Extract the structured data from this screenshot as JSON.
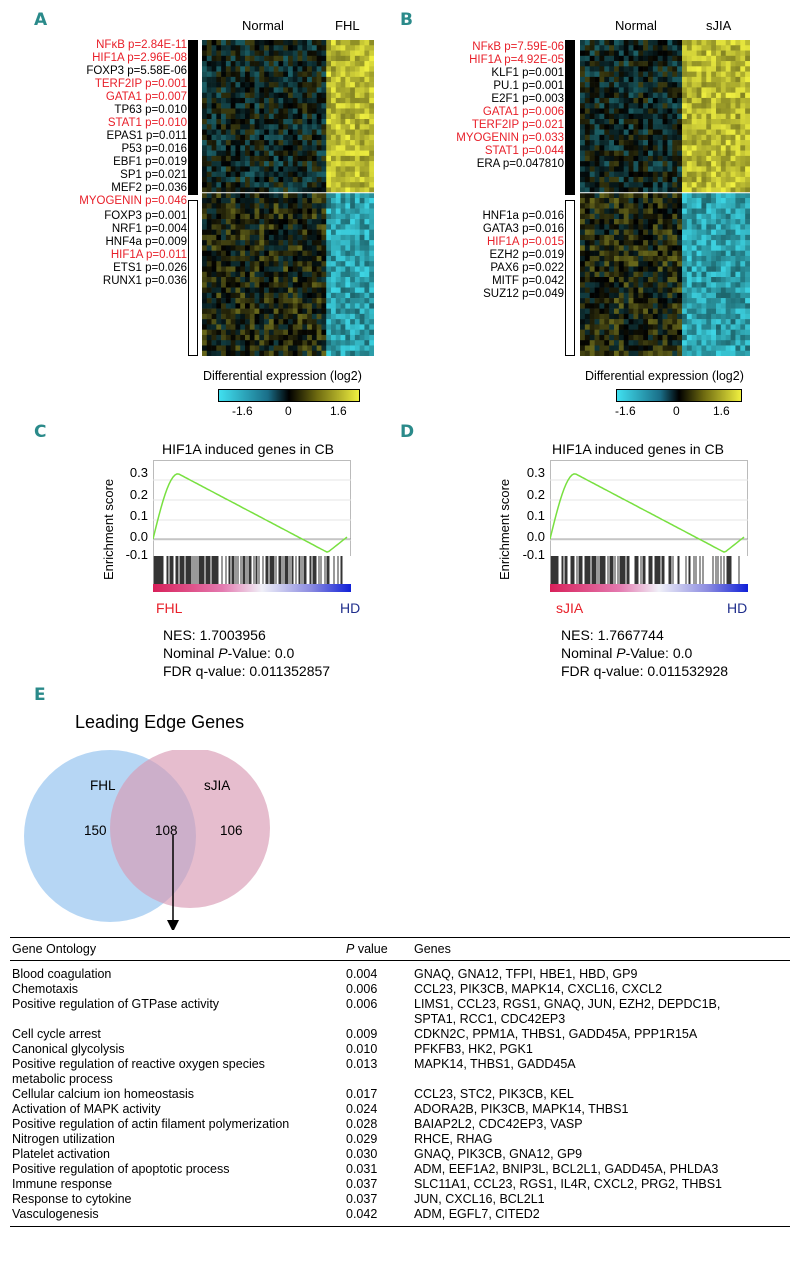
{
  "panels": {
    "A": "A",
    "B": "B",
    "C": "C",
    "D": "D",
    "E": "E"
  },
  "heatmapA": {
    "col_normal": "Normal",
    "col_case": "FHL",
    "up_tfs": [
      {
        "text": "NFκB p=2.84E-11",
        "red": true
      },
      {
        "text": "HIF1A p=2.96E-08",
        "red": true
      },
      {
        "text": "FOXP3 p=5.58E-06",
        "red": false
      },
      {
        "text": "TERF2IP p=0.001",
        "red": true
      },
      {
        "text": "GATA1 p=0.007",
        "red": true
      },
      {
        "text": "TP63 p=0.010",
        "red": false
      },
      {
        "text": "STAT1 p=0.010",
        "red": true
      },
      {
        "text": "EPAS1 p=0.011",
        "red": false
      },
      {
        "text": "P53 p=0.016",
        "red": false
      },
      {
        "text": "EBF1 p=0.019",
        "red": false
      },
      {
        "text": "SP1 p=0.021",
        "red": false
      },
      {
        "text": "MEF2 p=0.036",
        "red": false
      },
      {
        "text": "MYOGENIN p=0.046",
        "red": true
      }
    ],
    "down_tfs": [
      {
        "text": "FOXP3 p=0.001",
        "red": false
      },
      {
        "text": "NRF1 p=0.004",
        "red": false
      },
      {
        "text": "HNF4a p=0.009",
        "red": false
      },
      {
        "text": "HIF1A p=0.011",
        "red": true
      },
      {
        "text": "ETS1 p=0.026",
        "red": false
      },
      {
        "text": "RUNX1 p=0.036",
        "red": false
      }
    ]
  },
  "heatmapB": {
    "col_normal": "Normal",
    "col_case": "sJIA",
    "up_tfs": [
      {
        "text": "NFκB p=7.59E-06",
        "red": true
      },
      {
        "text": "HIF1A p=4.92E-05",
        "red": true
      },
      {
        "text": "KLF1 p=0.001",
        "red": false
      },
      {
        "text": "PU.1 p=0.001",
        "red": false
      },
      {
        "text": "E2F1 p=0.003",
        "red": false
      },
      {
        "text": "GATA1 p=0.006",
        "red": true
      },
      {
        "text": "TERF2IP p=0.021",
        "red": true
      },
      {
        "text": "MYOGENIN p=0.033",
        "red": true
      },
      {
        "text": "STAT1 p=0.044",
        "red": true
      },
      {
        "text": "ERA p=0.047810",
        "red": false
      }
    ],
    "down_tfs": [
      {
        "text": "HNF1a p=0.016",
        "red": false
      },
      {
        "text": "GATA3 p=0.016",
        "red": false
      },
      {
        "text": "HIF1A p=0.015",
        "red": true
      },
      {
        "text": "EZH2 p=0.019",
        "red": false
      },
      {
        "text": "PAX6 p=0.022",
        "red": false
      },
      {
        "text": "MITF p=0.042",
        "red": false
      },
      {
        "text": "SUZ12 p=0.049",
        "red": false
      }
    ]
  },
  "colorbar": {
    "title": "Differential expression (log2)",
    "ticks": [
      "-1.6",
      "0",
      "1.6"
    ],
    "colors": {
      "low": "#40e0f0",
      "mid": "#000000",
      "high": "#f0f040"
    }
  },
  "gseaC": {
    "title": "HIF1A induced genes in CB",
    "ylabel": "Enrichment score",
    "yticks": [
      "0.3",
      "0.2",
      "0.1",
      "0.0",
      "-0.1"
    ],
    "left_label": "FHL",
    "right_label": "HD",
    "nes_label": "NES:",
    "nes": "1.7003956",
    "p_label_pre": "Nominal ",
    "p_label_it": "P",
    "p_label_post": "-Value:",
    "p": "0.0",
    "fdr_label": "FDR  q-value:",
    "fdr": "0.011352857"
  },
  "gseaD": {
    "title": "HIF1A induced genes in CB",
    "ylabel": "Enrichment score",
    "yticks": [
      "0.3",
      "0.2",
      "0.1",
      "0.0",
      "-0.1"
    ],
    "left_label": "sJIA",
    "right_label": "HD",
    "nes_label": "NES:",
    "nes": "1.7667744",
    "p_label_pre": "Nominal ",
    "p_label_it": "P",
    "p_label_post": "-Value:",
    "p": "0.0",
    "fdr_label": "FDR  q-value:",
    "fdr": "0.011532928"
  },
  "venn": {
    "title": "Leading Edge Genes",
    "left_name": "FHL",
    "right_name": "sJIA",
    "left_only": "150",
    "both": "108",
    "right_only": "106"
  },
  "table": {
    "headers": {
      "ontology": "Gene Ontology",
      "p_it": "P",
      "p_rest": " value",
      "genes": "Genes"
    },
    "rows": [
      {
        "term": [
          "Blood coagulation"
        ],
        "p": "0.004",
        "genes": [
          "GNAQ, GNA12, TFPI, HBE1, HBD, GP9"
        ]
      },
      {
        "term": [
          "Chemotaxis"
        ],
        "p": "0.006",
        "genes": [
          "CCL23, PIK3CB, MAPK14, CXCL16, CXCL2"
        ]
      },
      {
        "term": [
          "Positive regulation of GTPase activity"
        ],
        "p": "0.006",
        "genes": [
          "LIMS1, CCL23, RGS1, GNAQ, JUN, EZH2, DEPDC1B,",
          "SPTA1, RCC1, CDC42EP3"
        ]
      },
      {
        "term": [
          "Cell cycle arrest"
        ],
        "p": "0.009",
        "genes": [
          "CDKN2C, PPM1A, THBS1, GADD45A, PPP1R15A"
        ]
      },
      {
        "term": [
          "Canonical glycolysis"
        ],
        "p": "0.010",
        "genes": [
          "PFKFB3, HK2, PGK1"
        ]
      },
      {
        "term": [
          "Positive regulation of reactive oxygen species",
          "metabolic process"
        ],
        "p": "0.013",
        "genes": [
          "MAPK14, THBS1, GADD45A"
        ]
      },
      {
        "term": [
          "Cellular calcium ion homeostasis"
        ],
        "p": "0.017",
        "genes": [
          "CCL23, STC2, PIK3CB, KEL"
        ]
      },
      {
        "term": [
          "Activation of MAPK activity"
        ],
        "p": "0.024",
        "genes": [
          "ADORA2B, PIK3CB, MAPK14, THBS1"
        ]
      },
      {
        "term": [
          "Positive regulation of actin filament polymerization"
        ],
        "p": "0.028",
        "genes": [
          "BAIAP2L2, CDC42EP3, VASP"
        ]
      },
      {
        "term": [
          "Nitrogen utilization"
        ],
        "p": "0.029",
        "genes": [
          "RHCE, RHAG"
        ]
      },
      {
        "term": [
          "Platelet activation"
        ],
        "p": "0.030",
        "genes": [
          "GNAQ, PIK3CB, GNA12, GP9"
        ]
      },
      {
        "term": [
          "Positive regulation of apoptotic process"
        ],
        "p": "0.031",
        "genes": [
          "ADM, EEF1A2, BNIP3L, BCL2L1, GADD45A, PHLDA3"
        ]
      },
      {
        "term": [
          "Immune response"
        ],
        "p": "0.037",
        "genes": [
          "SLC11A1, CCL23, RGS1, IL4R, CXCL2, PRG2, THBS1"
        ]
      },
      {
        "term": [
          "Response to cytokine"
        ],
        "p": "0.037",
        "genes": [
          "JUN, CXCL16, BCL2L1"
        ]
      },
      {
        "term": [
          "Vasculogenesis"
        ],
        "p": "0.042",
        "genes": [
          "ADM, EGFL7, CITED2"
        ]
      }
    ]
  }
}
